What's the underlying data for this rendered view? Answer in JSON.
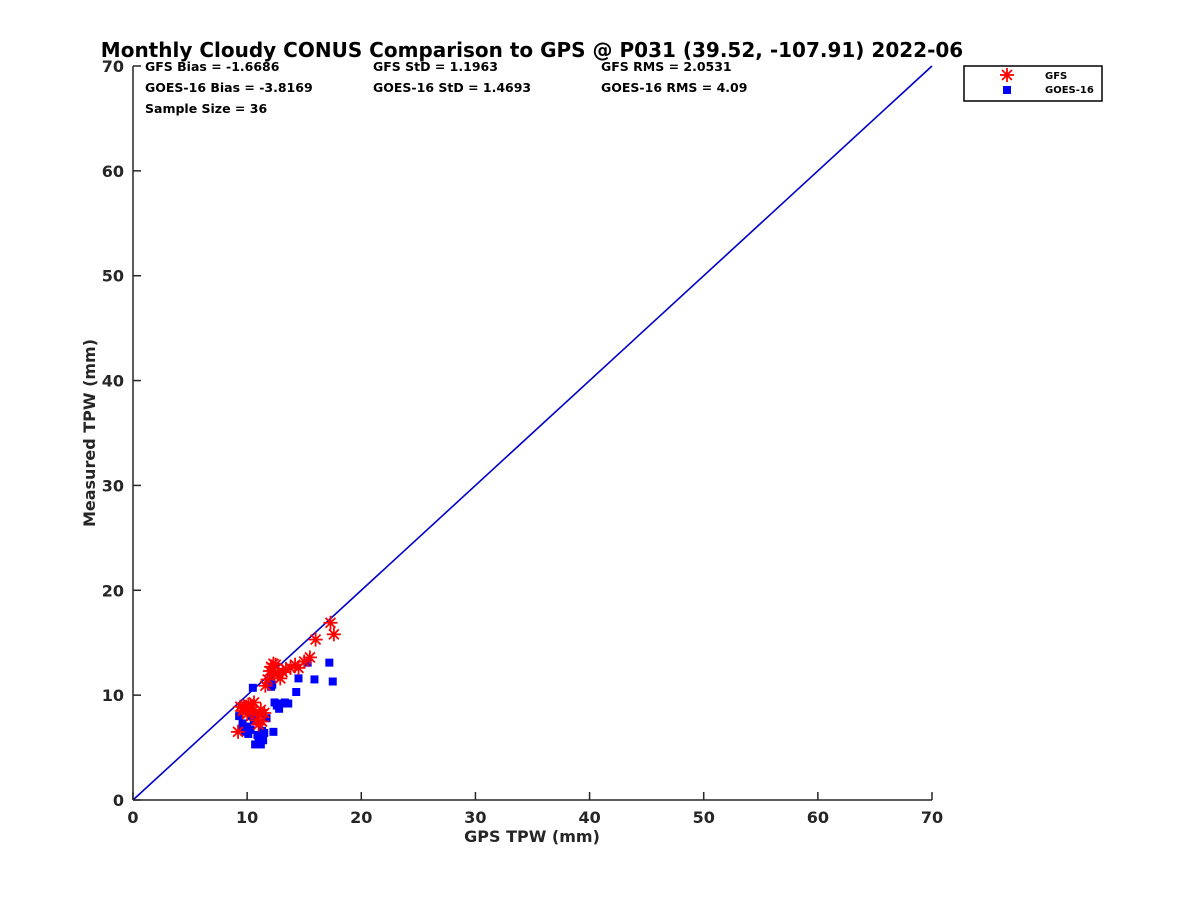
{
  "chart_data": {
    "type": "scatter",
    "title": "Monthly Cloudy CONUS Comparison to GPS @ P031 (39.52, -107.91) 2022-06",
    "xlabel": "GPS TPW (mm)",
    "ylabel": "Measured TPW (mm)",
    "xlim": [
      0,
      70
    ],
    "ylim": [
      0,
      70
    ],
    "xticks": [
      "0",
      "10",
      "20",
      "30",
      "40",
      "50",
      "60",
      "70"
    ],
    "yticks": [
      "0",
      "10",
      "20",
      "30",
      "40",
      "50",
      "60",
      "70"
    ],
    "grid": false,
    "legend_position": "top-right",
    "stats": {
      "gfs_bias": "GFS Bias = -1.6686",
      "gfs_std": "GFS StD = 1.1963",
      "gfs_rms": "GFS RMS = 2.0531",
      "goes_bias": "GOES-16 Bias = -3.8169",
      "goes_std": "GOES-16 StD = 1.4693",
      "goes_rms": "GOES-16 RMS = 4.09",
      "sample_size": "Sample Size = 36"
    },
    "reference_line": {
      "x": [
        0,
        70
      ],
      "y": [
        0,
        70
      ],
      "color": "#0000cc"
    },
    "series": [
      {
        "name": "GFS",
        "marker": "asterisk",
        "color": "#ff0000",
        "x": [
          9.2,
          9.4,
          9.6,
          9.9,
          10.0,
          10.2,
          10.3,
          10.5,
          10.6,
          10.8,
          11.0,
          11.1,
          11.3,
          11.5,
          11.6,
          11.8,
          12.0,
          12.1,
          12.3,
          12.5,
          12.7,
          12.9,
          13.1,
          13.4,
          13.8,
          14.2,
          14.5,
          15.0,
          15.5,
          16.0,
          17.3,
          17.6,
          10.1,
          9.7,
          11.2,
          12.4
        ],
        "y": [
          6.5,
          8.9,
          8.5,
          8.9,
          8.2,
          8.7,
          9.0,
          8.5,
          9.3,
          7.6,
          7.2,
          8.1,
          7.5,
          8.3,
          10.9,
          11.5,
          12.3,
          12.7,
          13.0,
          12.9,
          12.1,
          11.6,
          12.2,
          12.5,
          12.6,
          12.9,
          12.6,
          13.2,
          13.6,
          15.3,
          16.9,
          15.8,
          9.1,
          8.8,
          8.6,
          12.0
        ]
      },
      {
        "name": "GOES-16",
        "marker": "square",
        "color": "#0000ff",
        "x": [
          9.3,
          9.5,
          9.8,
          10.0,
          10.1,
          10.3,
          10.5,
          10.7,
          10.8,
          11.0,
          11.2,
          11.4,
          11.5,
          11.7,
          11.9,
          12.1,
          12.3,
          12.4,
          12.6,
          12.8,
          13.0,
          13.3,
          13.6,
          14.3,
          14.5,
          15.3,
          15.9,
          17.2,
          17.5,
          10.4,
          10.9,
          11.3,
          12.2,
          9.6,
          10.6,
          11.1
        ],
        "y": [
          8.0,
          6.8,
          6.5,
          7.0,
          6.3,
          6.7,
          10.7,
          5.3,
          8.3,
          6.0,
          5.3,
          5.7,
          6.4,
          7.8,
          11.3,
          10.8,
          6.5,
          9.3,
          9.0,
          8.7,
          9.2,
          9.3,
          9.2,
          10.3,
          11.6,
          13.1,
          11.5,
          13.1,
          11.3,
          8.0,
          6.2,
          6.6,
          11.0,
          7.3,
          7.6,
          5.9
        ]
      }
    ]
  }
}
